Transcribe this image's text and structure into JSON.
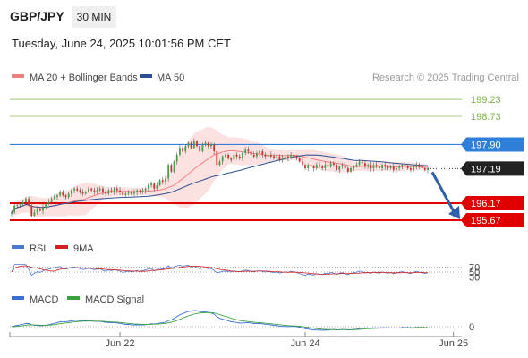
{
  "header": {
    "pair": "GBP/JPY",
    "timeframe": "30 MIN",
    "datetime": "Tuesday, June 24, 2025 10:01:56 PM CET"
  },
  "legend": {
    "ma20": "MA 20 + Bollinger Bands",
    "ma50": "MA 50",
    "credit": "Research © 2025 Trading Central",
    "rsi": "RSI",
    "rsi_ma": "9MA",
    "macd": "MACD",
    "macd_signal": "MACD Signal"
  },
  "colors": {
    "ma20": "#f08080",
    "ma50": "#2a4f8f",
    "bollinger_fill": "#fbdcdc",
    "candle_up": "#43a047",
    "candle_down": "#d32f2f",
    "target": "#7cb342",
    "pivot": "#2f7fd8",
    "support": "#e00000",
    "current": "#222222",
    "arrow": "#2f5fa8",
    "rsi": "#4a78d0",
    "rsi_ma": "#d32020",
    "macd": "#3a6fd8",
    "macd_signal": "#3aa040"
  },
  "levels": [
    {
      "role": "target",
      "value": 199.23,
      "label": "199.23"
    },
    {
      "role": "target",
      "value": 198.73,
      "label": "198.73"
    },
    {
      "role": "pivot",
      "value": 197.9,
      "label": "197.90"
    },
    {
      "role": "current",
      "value": 197.19,
      "label": "197.19"
    },
    {
      "role": "support",
      "value": 196.17,
      "label": "196.17"
    },
    {
      "role": "support",
      "value": 195.67,
      "label": "195.67"
    }
  ],
  "rsi_levels": [
    {
      "value": 70,
      "label": "70"
    },
    {
      "value": 50,
      "label": "50"
    },
    {
      "value": 30,
      "label": "30"
    }
  ],
  "macd_zero_label": "0",
  "x_axis_labels": [
    {
      "index": 38,
      "label": "Jun 22"
    },
    {
      "index": 103,
      "label": "Jun 24"
    },
    {
      "index": 155,
      "label": "Jun 25"
    }
  ],
  "chart_data": {
    "type": "candlestick",
    "title": "",
    "y_range": [
      195.3,
      200.05
    ],
    "series": [
      {
        "name": "GBP/JPY",
        "values": [
          195.9,
          196.1,
          196.12,
          196.15,
          196.2,
          196.3,
          196.1,
          195.8,
          195.9,
          196.0,
          195.95,
          196.05,
          196.15,
          196.2,
          196.3,
          196.35,
          196.4,
          196.5,
          196.4,
          196.35,
          196.45,
          196.55,
          196.6,
          196.55,
          196.5,
          196.45,
          196.5,
          196.6,
          196.55,
          196.5,
          196.55,
          196.6,
          196.5,
          196.45,
          196.55,
          196.5,
          196.6,
          196.55,
          196.5,
          196.4,
          196.45,
          196.5,
          196.45,
          196.5,
          196.55,
          196.5,
          196.55,
          196.6,
          196.7,
          196.75,
          196.6,
          196.7,
          196.85,
          196.8,
          196.9,
          197.3,
          197.1,
          197.4,
          197.6,
          197.8,
          197.7,
          197.85,
          197.95,
          197.8,
          198.0,
          197.85,
          197.7,
          197.9,
          197.95,
          197.85,
          197.9,
          197.7,
          197.3,
          197.4,
          197.55,
          197.6,
          197.5,
          197.45,
          197.6,
          197.55,
          197.5,
          197.65,
          197.75,
          197.7,
          197.6,
          197.55,
          197.65,
          197.7,
          197.6,
          197.55,
          197.6,
          197.55,
          197.5,
          197.55,
          197.45,
          197.5,
          197.55,
          197.5,
          197.6,
          197.55,
          197.5,
          197.4,
          197.3,
          197.2,
          197.3,
          197.25,
          197.2,
          197.3,
          197.25,
          197.2,
          197.3,
          197.25,
          197.35,
          197.3,
          197.15,
          197.25,
          197.3,
          197.2,
          197.1,
          197.2,
          197.25,
          197.3,
          197.4,
          197.35,
          197.25,
          197.3,
          197.2,
          197.3,
          197.25,
          197.2,
          197.3,
          197.25,
          197.2,
          197.25,
          197.15,
          197.2,
          197.25,
          197.3,
          197.25,
          197.2,
          197.15,
          197.25,
          197.3,
          197.25,
          197.2,
          197.15,
          197.19
        ]
      }
    ],
    "rsi": {
      "ylim": [
        0,
        100
      ]
    },
    "macd": {}
  }
}
